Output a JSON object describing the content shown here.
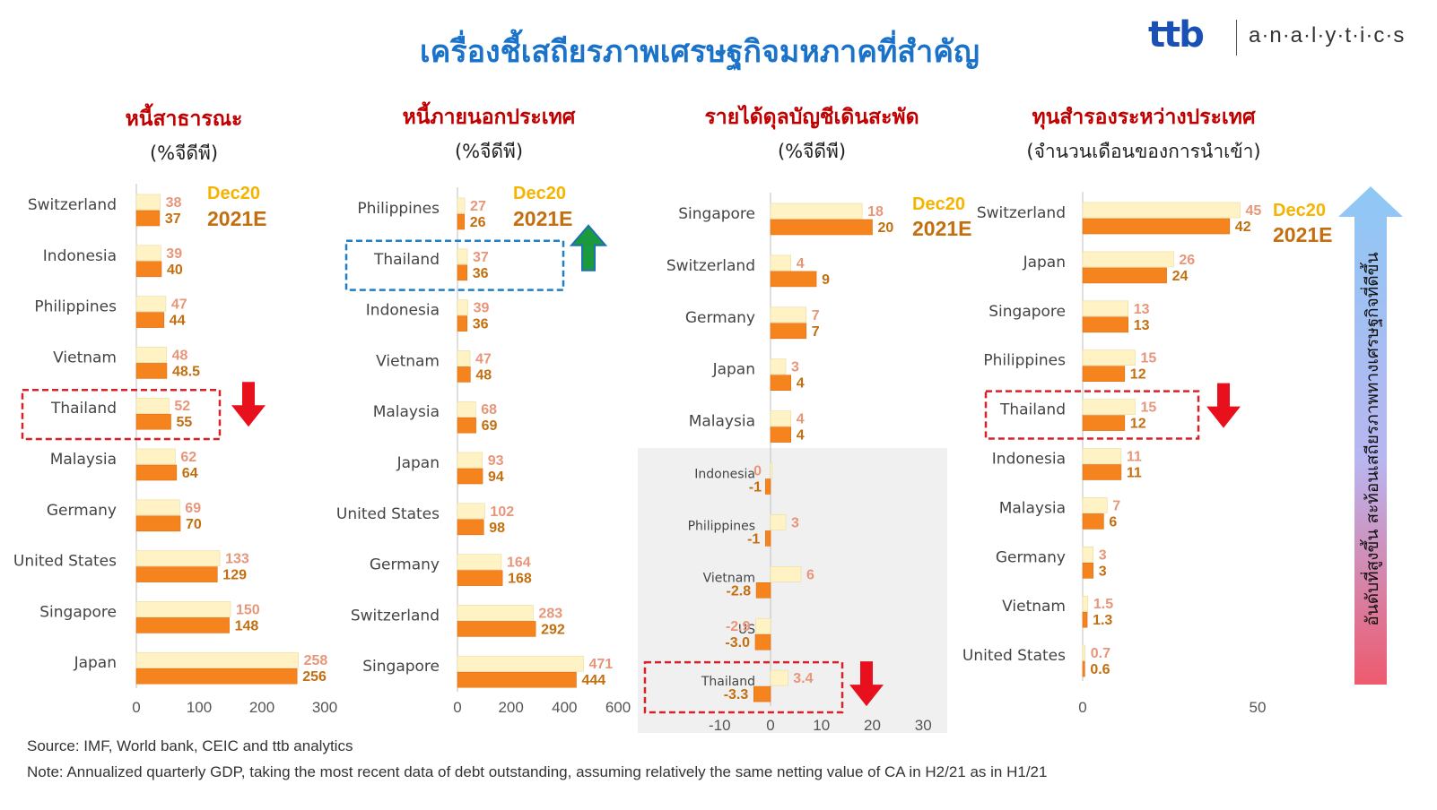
{
  "title": "เครื่องชี้เสถียรภาพเศรษฐกิจมหภาคที่สำคัญ",
  "brand": {
    "mark": "ttb",
    "name": "a·n·a·l·y·t·i·c·s"
  },
  "legend": {
    "dec20": "Dec20",
    "e2021": "2021E"
  },
  "colors": {
    "dec20_bar": "#fff2c4",
    "e2021_bar": "#f5841f",
    "dec20_label": "#e8967a",
    "e2021_label": "#c36f10",
    "highlight_box": "#d6232a",
    "blue_box": "#1f7fc4"
  },
  "side_label": "อันดับที่สูงขึ้น สะท้อนเสถียรภาพทางเศรษฐกิจที่ดีขึ้น",
  "source": "Source: IMF, World bank, CEIC and ttb analytics",
  "note": "Note: Annualized  quarterly GDP, taking the most recent data of debt outstanding, assuming relatively the same netting value of CA in H2/21 as in H1/21",
  "chart_data": [
    {
      "type": "bar",
      "title": "หนี้สาธารณะ",
      "subtitle": "(%จีดีพี)",
      "categories": [
        "Switzerland",
        "Indonesia",
        "Philippines",
        "Vietnam",
        "Thailand",
        "Malaysia",
        "Germany",
        "United States",
        "Singapore",
        "Japan"
      ],
      "series": [
        {
          "name": "Dec20",
          "values": [
            38,
            39,
            47,
            48,
            52,
            62,
            69,
            133,
            150,
            258
          ],
          "labels": [
            "38",
            "39",
            "47",
            "48",
            "52",
            "62",
            "69",
            "133",
            "150",
            "258"
          ]
        },
        {
          "name": "2021E",
          "values": [
            37,
            40,
            44,
            48.5,
            55,
            64,
            70,
            129,
            148,
            256
          ],
          "labels": [
            "37",
            "40",
            "44",
            "48.5",
            "55",
            "64",
            "70",
            "129",
            "148",
            "256"
          ]
        }
      ],
      "xlim": [
        0,
        300
      ],
      "ticks": [
        "0",
        "100",
        "200",
        "300"
      ],
      "highlight": "Thailand",
      "arrow": "down-red"
    },
    {
      "type": "bar",
      "title": "หนี้ภายนอกประเทศ",
      "subtitle": "(%จีดีพี)",
      "categories": [
        "Philippines",
        "Thailand",
        "Indonesia",
        "Vietnam",
        "Malaysia",
        "Japan",
        "United States",
        "Germany",
        "Switzerland",
        "Singapore"
      ],
      "series": [
        {
          "name": "Dec20",
          "values": [
            27,
            37,
            39,
            47,
            68,
            93,
            102,
            164,
            283,
            471
          ],
          "labels": [
            "27",
            "37",
            "39",
            "47",
            "68",
            "93",
            "102",
            "164",
            "283",
            "471"
          ]
        },
        {
          "name": "2021E",
          "values": [
            26,
            36,
            36,
            48,
            69,
            94,
            98,
            168,
            292,
            444
          ],
          "labels": [
            "26",
            "36",
            "36",
            "48",
            "69",
            "94",
            "98",
            "168",
            "292",
            "444"
          ]
        }
      ],
      "xlim": [
        0,
        600
      ],
      "ticks": [
        "0",
        "200",
        "400",
        "600"
      ],
      "highlight": "Thailand",
      "arrow": "up-blue-green"
    },
    {
      "type": "bar",
      "title": "รายได้ดุลบัญชีเดินสะพัด",
      "subtitle": "(%จีดีพี)",
      "categories": [
        "Singapore",
        "Switzerland",
        "Germany",
        "Japan",
        "Malaysia",
        "Indonesia",
        "Philippines",
        "Vietnam",
        "US",
        "Thailand"
      ],
      "series": [
        {
          "name": "Dec20",
          "values": [
            18,
            4,
            7,
            3,
            4,
            0,
            3,
            6,
            -2.9,
            3.4
          ],
          "labels": [
            "18",
            "4",
            "7",
            "3",
            "4",
            "0",
            "3",
            "6",
            "-2.9",
            "3.4"
          ]
        },
        {
          "name": "2021E",
          "values": [
            20,
            9,
            7,
            4,
            4,
            -1,
            -1,
            -2.8,
            -3.0,
            -3.3
          ],
          "labels": [
            "20",
            "9",
            "7",
            "4",
            "4",
            "-1",
            "-1",
            "-2.8",
            "-3.0",
            "-3.3"
          ]
        }
      ],
      "xlim": [
        -10,
        30
      ],
      "ticks": [
        "-10",
        "0",
        "10",
        "20",
        "30"
      ],
      "highlight": "Thailand",
      "arrow": "down-red"
    },
    {
      "type": "bar",
      "title": "ทุนสำรองระหว่างประเทศ",
      "subtitle": "(จำนวนเดือนของการนำเข้า)",
      "categories": [
        "Switzerland",
        "Japan",
        "Singapore",
        "Philippines",
        "Thailand",
        "Indonesia",
        "Malaysia",
        "Germany",
        "Vietnam",
        "United States"
      ],
      "series": [
        {
          "name": "Dec20",
          "values": [
            45,
            26,
            13,
            15,
            15,
            11,
            7,
            3,
            1.5,
            0.7
          ],
          "labels": [
            "45",
            "26",
            "13",
            "15",
            "15",
            "11",
            "7",
            "3",
            "1.5",
            "0.7"
          ]
        },
        {
          "name": "2021E",
          "values": [
            42,
            24,
            13,
            12,
            12,
            11,
            6,
            3,
            1.3,
            0.6
          ],
          "labels": [
            "42",
            "24",
            "13",
            "12",
            "12",
            "11",
            "6",
            "3",
            "1.3",
            "0.6"
          ]
        }
      ],
      "xlim": [
        0,
        50
      ],
      "ticks": [
        "0",
        "50"
      ],
      "highlight": "Thailand",
      "arrow": "down-red"
    }
  ]
}
